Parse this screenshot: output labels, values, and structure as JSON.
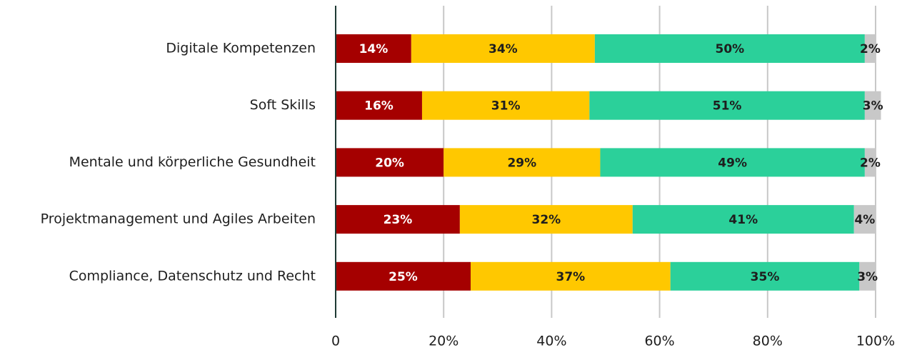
{
  "chart_data": {
    "type": "bar",
    "orientation": "horizontal",
    "stacked": true,
    "categories": [
      "Digitale Kompetenzen",
      "Soft Skills",
      "Mentale und körperliche Gesundheit",
      "Projektmanagement und Agiles Arbeiten",
      "Compliance, Datenschutz und Recht"
    ],
    "series": [
      {
        "color": "#a50000",
        "label_color": "#ffffff",
        "values": [
          14,
          16,
          20,
          23,
          25
        ],
        "value_labels": [
          "14%",
          "16%",
          "20%",
          "23%",
          "25%"
        ]
      },
      {
        "color": "#ffc800",
        "label_color": "#1e1e1e",
        "values": [
          34,
          31,
          29,
          32,
          37
        ],
        "value_labels": [
          "34%",
          "31%",
          "29%",
          "32%",
          "37%"
        ]
      },
      {
        "color": "#2bd09a",
        "label_color": "#1e1e1e",
        "values": [
          50,
          51,
          49,
          41,
          35
        ],
        "value_labels": [
          "50%",
          "51%",
          "49%",
          "41%",
          "35%"
        ]
      },
      {
        "color": "#c8c8c8",
        "label_color": "#1e1e1e",
        "values": [
          2,
          3,
          2,
          4,
          3
        ],
        "value_labels": [
          "2%",
          "3%",
          "2%",
          "4%",
          "3%"
        ]
      }
    ],
    "xlim": [
      0,
      100
    ],
    "xticks": [
      0,
      {
        "value": 20,
        "label": "20%"
      },
      {
        "value": 40,
        "label": "40%"
      },
      {
        "value": 60,
        "label": "60%"
      },
      {
        "value": 80,
        "label": "80%"
      },
      {
        "value": 100,
        "label": "100%"
      }
    ],
    "grid": true
  }
}
